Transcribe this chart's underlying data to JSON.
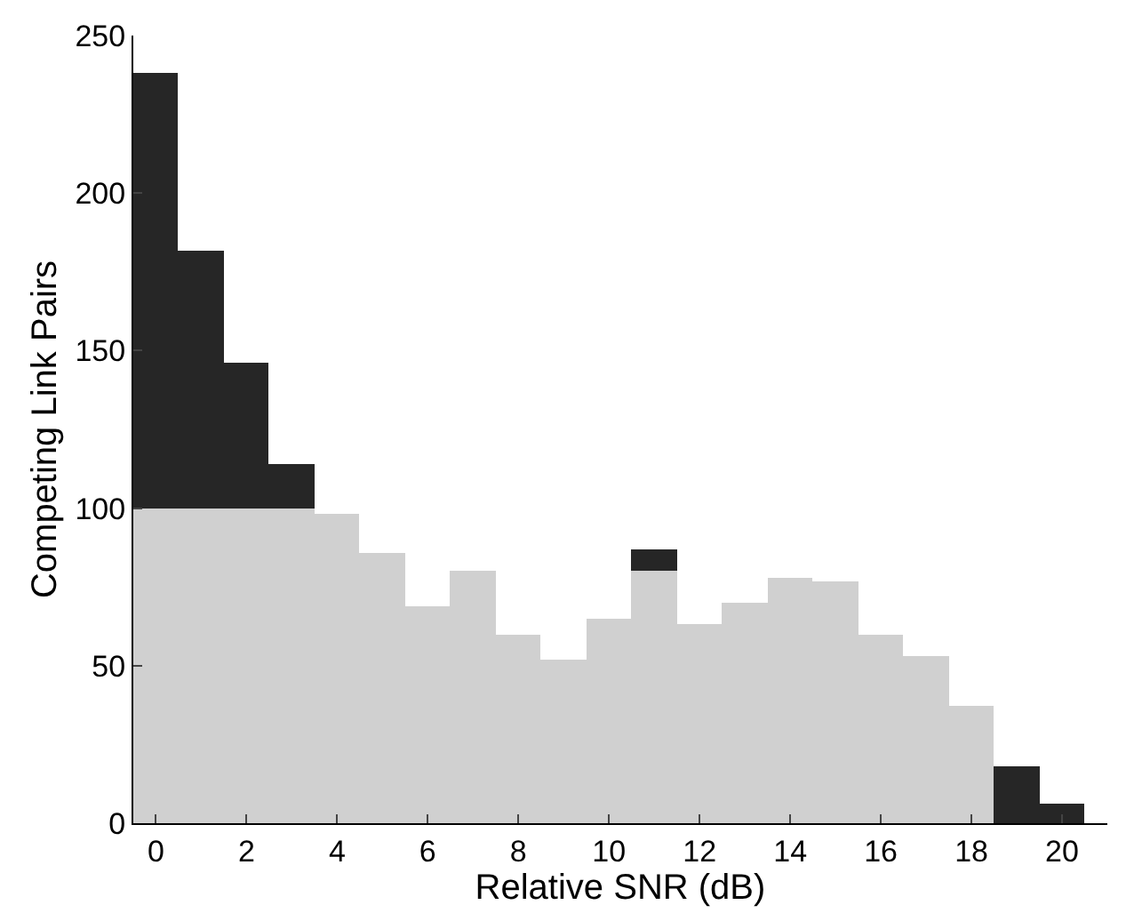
{
  "chart_data": {
    "type": "bar",
    "stacked": true,
    "xlabel": "Relative SNR (dB)",
    "ylabel": "Competing Link Pairs",
    "x": [
      0,
      1,
      2,
      3,
      4,
      5,
      6,
      7,
      8,
      9,
      10,
      11,
      12,
      13,
      14,
      15,
      16,
      17,
      18,
      19,
      20
    ],
    "series": [
      {
        "color": "#d0d0d0",
        "values": [
          100,
          100,
          100,
          100,
          98,
          86,
          69,
          80,
          60,
          52,
          65,
          80,
          63,
          70,
          78,
          77,
          60,
          53,
          37,
          0,
          0
        ]
      },
      {
        "color": "#262626",
        "values": [
          138,
          82,
          46,
          14,
          0,
          0,
          0,
          0,
          0,
          0,
          0,
          7,
          0,
          0,
          0,
          0,
          0,
          0,
          0,
          18,
          6
        ]
      }
    ],
    "xlim": [
      -0.5,
      21
    ],
    "xticks": [
      0,
      2,
      4,
      6,
      8,
      10,
      12,
      14,
      16,
      18,
      20
    ],
    "ylim": [
      0,
      250
    ],
    "yticks": [
      0,
      50,
      100,
      150,
      200,
      250
    ]
  }
}
